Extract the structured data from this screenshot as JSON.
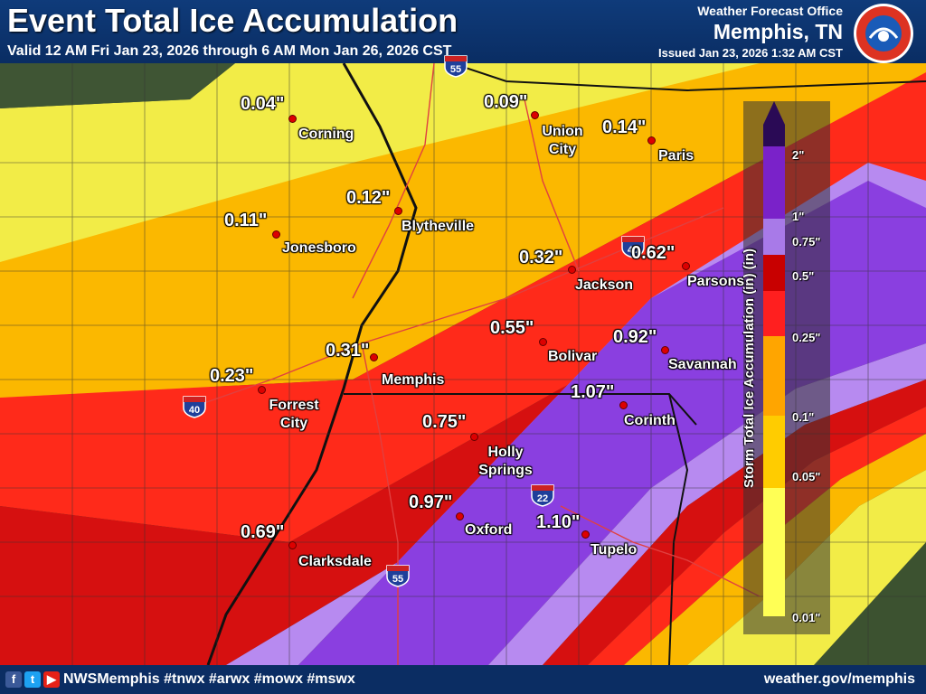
{
  "header": {
    "title": "Event Total Ice Accumulation",
    "valid": "Valid 12 AM Fri Jan 23, 2026 through 6 AM Mon Jan 26, 2026 CST",
    "office": "Weather Forecast Office",
    "city": "Memphis, TN",
    "issued": "Issued Jan 23, 2026 1:32 AM CST",
    "logo_text": "NATIONAL WEATHER SERVICE"
  },
  "footer": {
    "handle": "NWSMemphis #tnwx #arwx #mowx #mswx",
    "url": "weather.gov/memphis",
    "icons": [
      "facebook-icon",
      "twitter-icon",
      "youtube-icon"
    ]
  },
  "legend": {
    "title": "Storm Total Ice Accumulation (in) (in)",
    "ticks": [
      "2\"",
      "1\"",
      "0.75\"",
      "0.5\"",
      "0.25\"",
      "0.1\"",
      "0.05\"",
      "0.01\""
    ],
    "colors": [
      "#2a0a55",
      "#7a22c9",
      "#a87ae8",
      "#c80000",
      "#ff1f1f",
      "#ffa500",
      "#ffcc00",
      "#ffff55"
    ]
  },
  "colors": {
    "band_001": "#f2ec47",
    "band_005": "#f5d533",
    "band_01": "#fbb800",
    "band_025": "#ff2a1a",
    "band_05": "#d61010",
    "band_075": "#b78af0",
    "band_1": "#8a3fe0",
    "band_2": "#6a1cc7"
  },
  "accumulations": [
    {
      "value": "0.04\"",
      "city": "Corning"
    },
    {
      "value": "0.09\"",
      "city": "Union City"
    },
    {
      "value": "0.14\"",
      "city": "Paris"
    },
    {
      "value": "0.12\"",
      "city": "Blytheville"
    },
    {
      "value": "0.11\"",
      "city": "Jonesboro"
    },
    {
      "value": "0.32\"",
      "city": "Jackson"
    },
    {
      "value": "0.62\"",
      "city": "Parsons"
    },
    {
      "value": "0.55\"",
      "city": "Bolivar"
    },
    {
      "value": "0.92\"",
      "city": "Savannah"
    },
    {
      "value": "0.31\"",
      "city": "Memphis"
    },
    {
      "value": "0.23\"",
      "city": "Forrest City"
    },
    {
      "value": "1.07\"",
      "city": "Corinth"
    },
    {
      "value": "0.75\"",
      "city": "Holly Springs"
    },
    {
      "value": "0.97\"",
      "city": "Oxford"
    },
    {
      "value": "1.10\"",
      "city": "Tupelo"
    },
    {
      "value": "0.69\"",
      "city": "Clarksdale"
    }
  ],
  "highways": [
    "40",
    "40",
    "22",
    "55",
    "55"
  ]
}
